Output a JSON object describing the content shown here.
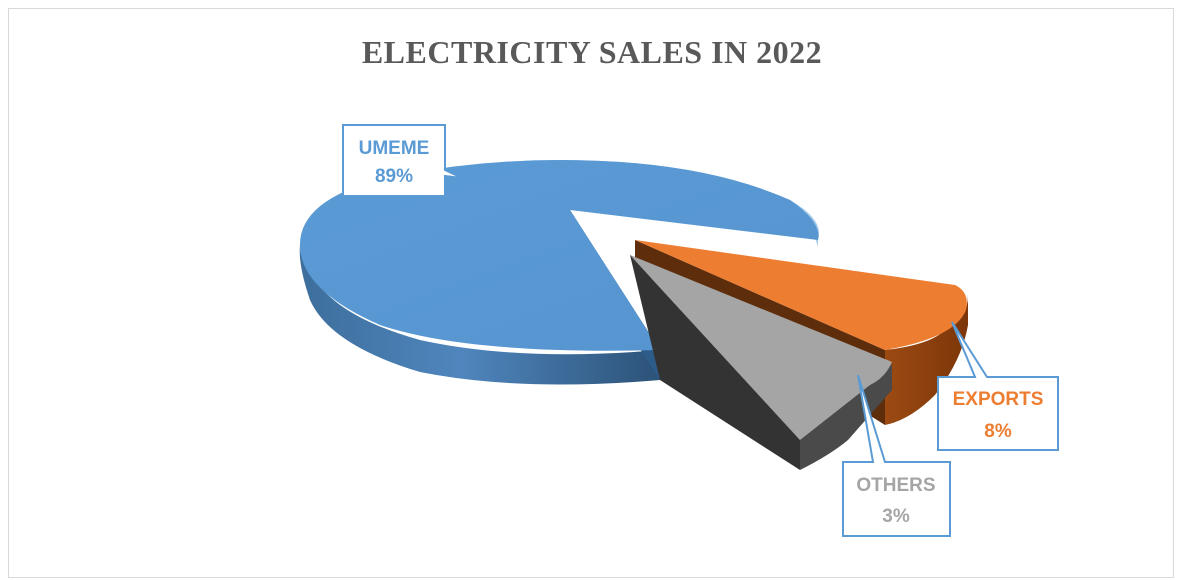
{
  "chart_data": {
    "type": "pie",
    "title": "ELECTRICITY SALES IN 2022",
    "categories": [
      "UMEME",
      "EXPORTS",
      "OTHERS"
    ],
    "values": [
      89,
      8,
      3
    ],
    "data_labels": [
      {
        "name": "UMEME",
        "value": "89%"
      },
      {
        "name": "EXPORTS",
        "value": "8%"
      },
      {
        "name": "OTHERS",
        "value": "3%"
      }
    ],
    "colors": {
      "UMEME": "#5b9bd5",
      "EXPORTS": "#ed7d31",
      "OTHERS": "#a5a5a5"
    },
    "legend": "none",
    "style": "3d-exploded"
  }
}
